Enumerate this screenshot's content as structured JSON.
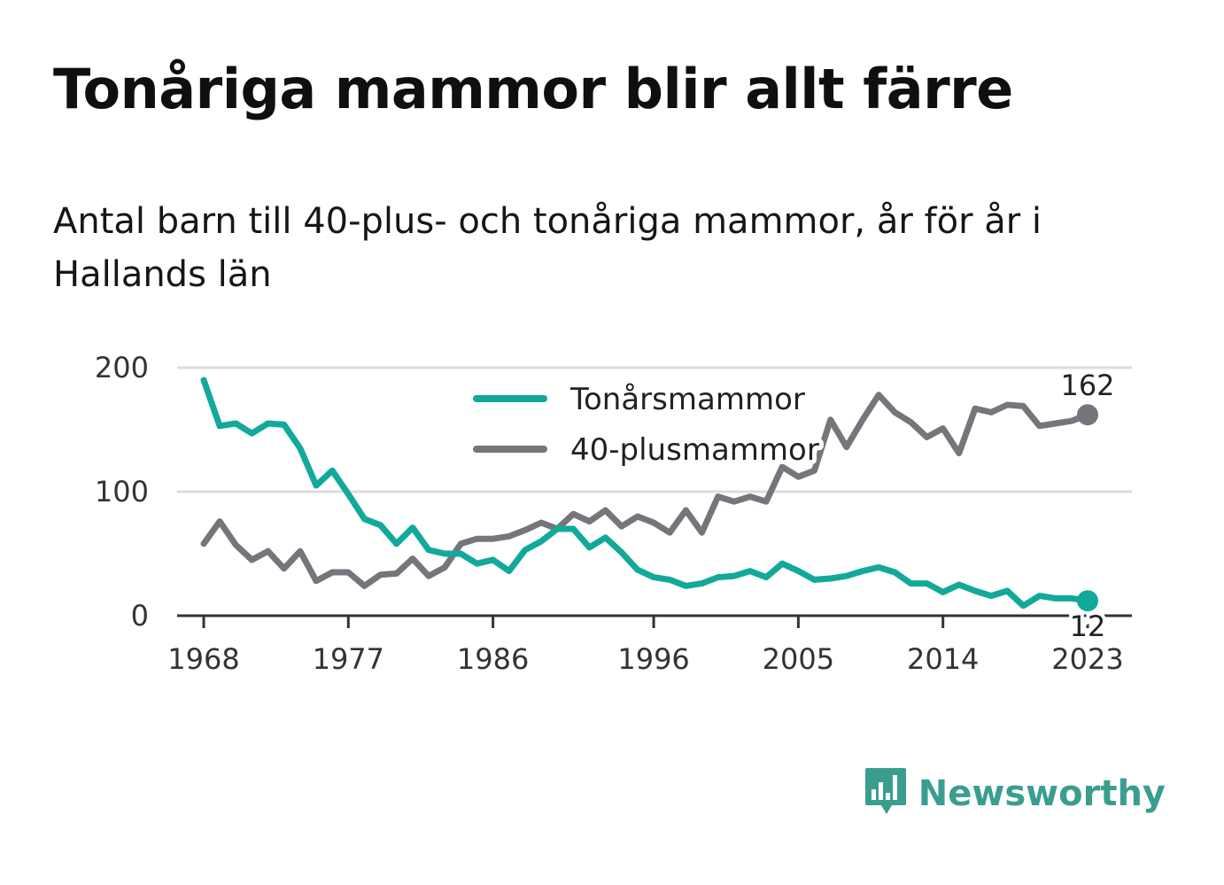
{
  "title": "Tonåriga mammor blir allt färre",
  "subtitle": "Antal barn till 40-plus- och tonåriga mammor, år för år i Hallands län",
  "brand": {
    "name": "Newsworthy",
    "icon": "newsworthy-logo-icon",
    "color": "#3a9e8f"
  },
  "chart_data": {
    "type": "line",
    "title": "Tonåriga mammor blir allt färre",
    "subtitle": "Antal barn till 40-plus- och tonåriga mammor, år för år i Hallands län",
    "xlabel": "",
    "ylabel": "",
    "xlim": [
      1968,
      2023
    ],
    "ylim": [
      0,
      200
    ],
    "x_ticks": [
      1968,
      1977,
      1986,
      1996,
      2005,
      2014,
      2023
    ],
    "y_ticks": [
      0,
      100,
      200
    ],
    "grid": true,
    "legend_position": "top-center",
    "x": [
      1968,
      1969,
      1970,
      1971,
      1972,
      1973,
      1974,
      1975,
      1976,
      1977,
      1978,
      1979,
      1980,
      1981,
      1982,
      1983,
      1984,
      1985,
      1986,
      1987,
      1988,
      1989,
      1990,
      1991,
      1992,
      1993,
      1994,
      1995,
      1996,
      1997,
      1998,
      1999,
      2000,
      2001,
      2002,
      2003,
      2004,
      2005,
      2006,
      2007,
      2008,
      2009,
      2010,
      2011,
      2012,
      2013,
      2014,
      2015,
      2016,
      2017,
      2018,
      2019,
      2020,
      2021,
      2022,
      2023
    ],
    "series": [
      {
        "name": "Tonårsmammor",
        "color": "#12a99b",
        "end_label": "12",
        "values": [
          190,
          153,
          155,
          147,
          155,
          154,
          135,
          105,
          117,
          98,
          78,
          73,
          58,
          71,
          53,
          50,
          50,
          42,
          45,
          36,
          53,
          60,
          70,
          70,
          55,
          63,
          51,
          37,
          31,
          29,
          24,
          26,
          31,
          32,
          36,
          31,
          42,
          36,
          29,
          30,
          32,
          36,
          39,
          35,
          26,
          26,
          19,
          25,
          20,
          16,
          20,
          8,
          16,
          14,
          14,
          12
        ]
      },
      {
        "name": "40-plusmammor",
        "color": "#76757c",
        "end_label": "162",
        "values": [
          58,
          76,
          57,
          45,
          52,
          38,
          52,
          28,
          35,
          35,
          24,
          33,
          34,
          46,
          32,
          39,
          58,
          62,
          62,
          64,
          69,
          75,
          70,
          82,
          76,
          85,
          72,
          80,
          75,
          67,
          85,
          67,
          96,
          92,
          96,
          92,
          120,
          112,
          117,
          158,
          136,
          158,
          178,
          164,
          156,
          144,
          151,
          131,
          167,
          164,
          170,
          169,
          153,
          155,
          157,
          162
        ]
      }
    ]
  }
}
